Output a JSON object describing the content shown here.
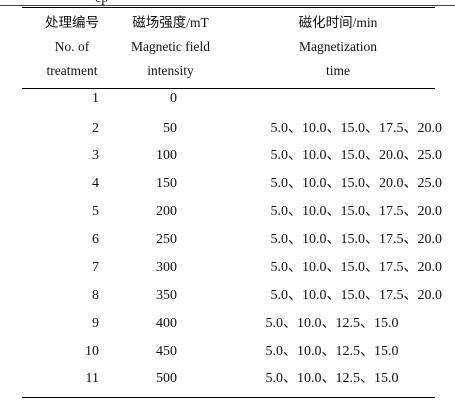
{
  "caption_fragment": "ep",
  "headers": {
    "col1": [
      "处理编号",
      "No. of",
      "treatment"
    ],
    "col2": [
      "磁场强度/mT",
      "Magnetic field",
      "intensity"
    ],
    "col3": [
      "磁化时间/min",
      "Magnetization",
      "time"
    ]
  },
  "rows": [
    {
      "no": "1",
      "intensity": "0",
      "time": ""
    },
    {
      "no": "2",
      "intensity": "50",
      "time": "5.0、10.0、15.0、17.5、20.0"
    },
    {
      "no": "3",
      "intensity": "100",
      "time": "5.0、10.0、15.0、20.0、25.0"
    },
    {
      "no": "4",
      "intensity": "150",
      "time": "5.0、10.0、15.0、20.0、25.0"
    },
    {
      "no": "5",
      "intensity": "200",
      "time": "5.0、10.0、15.0、17.5、20.0"
    },
    {
      "no": "6",
      "intensity": "250",
      "time": "5.0、10.0、15.0、17.5、20.0"
    },
    {
      "no": "7",
      "intensity": "300",
      "time": "5.0、10.0、15.0、17.5、20.0"
    },
    {
      "no": "8",
      "intensity": "350",
      "time": "5.0、10.0、15.0、17.5、20.0"
    },
    {
      "no": "9",
      "intensity": "400",
      "time": "5.0、10.0、12.5、15.0"
    },
    {
      "no": "10",
      "intensity": "450",
      "time": "5.0、10.0、12.5、15.0"
    },
    {
      "no": "11",
      "intensity": "500",
      "time": "5.0、10.0、12.5、15.0"
    }
  ]
}
